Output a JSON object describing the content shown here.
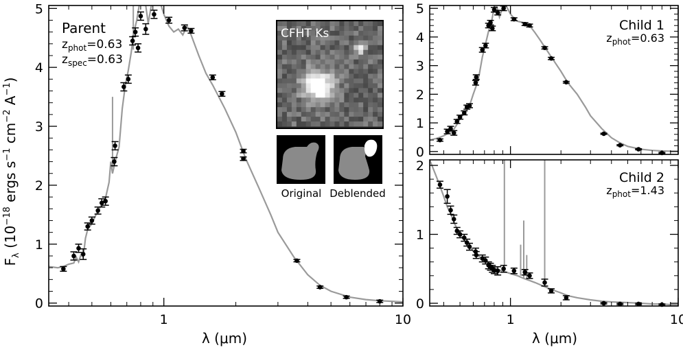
{
  "figure": {
    "y_label_main": "F",
    "y_label_sub": "λ",
    "y_label_rest": " (10",
    "y_label_exp1": "−18",
    "y_label_ergs": " ergs s",
    "y_label_exp2": "−1",
    "y_label_cm": " cm",
    "y_label_exp3": "−2",
    "y_label_A": " A",
    "y_label_exp4": "−1",
    "y_label_close": ")",
    "x_label": "λ (μm)",
    "inset": {
      "title": "CFHT Ks",
      "original_label": "Original",
      "deblended_label": "Deblended"
    }
  },
  "colors": {
    "model": "#9a9a9a",
    "points": "#000000",
    "axes": "#000000"
  },
  "chart_data": [
    {
      "id": "parent",
      "type": "scatter",
      "title": "Parent",
      "annotations": [
        {
          "label": "Parent"
        },
        {
          "label": "z",
          "sub": "phot",
          "value": "=0.63"
        },
        {
          "label": "z",
          "sub": "spec",
          "value": "=0.63"
        }
      ],
      "xscale": "log",
      "xlim": [
        0.33,
        10
      ],
      "ylim": [
        -0.05,
        5.05
      ],
      "xticks": [
        1,
        10
      ],
      "xticklabels": [
        "1",
        "10"
      ],
      "yticks": [
        0,
        1,
        2,
        3,
        4,
        5
      ],
      "yticklabels": [
        "0",
        "1",
        "2",
        "3",
        "4",
        "5"
      ],
      "points": [
        {
          "x": 0.38,
          "y": 0.58,
          "err": 0.04
        },
        {
          "x": 0.42,
          "y": 0.8,
          "err": 0.07
        },
        {
          "x": 0.44,
          "y": 0.93,
          "err": 0.07
        },
        {
          "x": 0.46,
          "y": 0.83,
          "err": 0.09
        },
        {
          "x": 0.48,
          "y": 1.3,
          "err": 0.06
        },
        {
          "x": 0.5,
          "y": 1.4,
          "err": 0.06
        },
        {
          "x": 0.53,
          "y": 1.57,
          "err": 0.06
        },
        {
          "x": 0.55,
          "y": 1.7,
          "err": 0.07
        },
        {
          "x": 0.57,
          "y": 1.73,
          "err": 0.07
        },
        {
          "x": 0.62,
          "y": 2.4,
          "err": 0.07
        },
        {
          "x": 0.625,
          "y": 2.67,
          "err": 0.07
        },
        {
          "x": 0.68,
          "y": 3.67,
          "err": 0.07
        },
        {
          "x": 0.71,
          "y": 3.8,
          "err": 0.07
        },
        {
          "x": 0.74,
          "y": 4.45,
          "err": 0.07
        },
        {
          "x": 0.76,
          "y": 4.6,
          "err": 0.07
        },
        {
          "x": 0.78,
          "y": 4.33,
          "err": 0.07
        },
        {
          "x": 0.8,
          "y": 4.87,
          "err": 0.07
        },
        {
          "x": 0.84,
          "y": 4.65,
          "err": 0.09
        },
        {
          "x": 0.91,
          "y": 4.9,
          "err": 0.07
        },
        {
          "x": 1.05,
          "y": 4.8,
          "err": 0.05
        },
        {
          "x": 1.22,
          "y": 4.67,
          "err": 0.05
        },
        {
          "x": 1.3,
          "y": 4.62,
          "err": 0.04
        },
        {
          "x": 1.6,
          "y": 3.83,
          "err": 0.04
        },
        {
          "x": 1.75,
          "y": 3.55,
          "err": 0.04
        },
        {
          "x": 2.15,
          "y": 2.58,
          "err": 0.03
        },
        {
          "x": 2.15,
          "y": 2.45,
          "err": 0.03
        },
        {
          "x": 3.6,
          "y": 0.72,
          "err": 0.02
        },
        {
          "x": 4.5,
          "y": 0.27,
          "err": 0.02
        },
        {
          "x": 5.8,
          "y": 0.1,
          "err": 0.02
        },
        {
          "x": 8.0,
          "y": 0.03,
          "err": 0.02
        }
      ],
      "model": {
        "x": [
          0.33,
          0.36,
          0.38,
          0.4,
          0.42,
          0.43,
          0.44,
          0.45,
          0.46,
          0.47,
          0.48,
          0.5,
          0.52,
          0.55,
          0.57,
          0.59,
          0.6,
          0.61,
          0.63,
          0.65,
          0.67,
          0.69,
          0.71,
          0.73,
          0.75,
          0.77,
          0.8,
          0.83,
          0.86,
          0.9,
          0.95,
          1.0,
          1.05,
          1.1,
          1.15,
          1.2,
          1.25,
          1.3,
          1.4,
          1.5,
          1.6,
          1.8,
          2.0,
          2.2,
          2.5,
          2.8,
          3.0,
          3.5,
          4.0,
          4.5,
          5.0,
          6.0,
          7.0,
          8.0,
          9.0,
          10.0
        ],
        "y": [
          0.62,
          0.6,
          0.62,
          0.66,
          0.68,
          0.78,
          0.7,
          0.82,
          0.78,
          1.1,
          1.25,
          1.35,
          1.5,
          1.68,
          1.78,
          2.05,
          2.4,
          2.2,
          2.45,
          2.65,
          3.3,
          3.7,
          3.95,
          4.25,
          4.6,
          4.8,
          5.2,
          5.2,
          4.75,
          5.2,
          5.2,
          4.9,
          4.7,
          4.6,
          4.65,
          4.55,
          4.7,
          4.55,
          4.2,
          3.9,
          3.7,
          3.3,
          2.9,
          2.45,
          1.95,
          1.5,
          1.2,
          0.78,
          0.48,
          0.3,
          0.2,
          0.1,
          0.06,
          0.04,
          0.03,
          0.02
        ]
      },
      "model_spikes": [
        {
          "x": 0.61,
          "y0": 2.3,
          "y1": 3.5
        },
        {
          "x": 0.745,
          "y0": 4.3,
          "y1": 5.05
        }
      ]
    },
    {
      "id": "child1",
      "type": "scatter",
      "title": "Child 1",
      "annotations": [
        {
          "label": "Child 1"
        },
        {
          "label": "z",
          "sub": "phot",
          "value": "=0.63"
        }
      ],
      "xscale": "log",
      "xlim": [
        0.33,
        10
      ],
      "ylim": [
        -0.1,
        5.1
      ],
      "xticks": [
        1,
        10
      ],
      "xticklabels": [
        "",
        ""
      ],
      "yticks": [
        0,
        1,
        2,
        3,
        4,
        5
      ],
      "yticklabels": [
        "0",
        "1",
        "2",
        "3",
        "4",
        "5"
      ],
      "points": [
        {
          "x": 0.38,
          "y": 0.4,
          "err": 0.04
        },
        {
          "x": 0.42,
          "y": 0.7,
          "err": 0.08
        },
        {
          "x": 0.44,
          "y": 0.8,
          "err": 0.08
        },
        {
          "x": 0.46,
          "y": 0.65,
          "err": 0.08
        },
        {
          "x": 0.48,
          "y": 1.05,
          "err": 0.07
        },
        {
          "x": 0.5,
          "y": 1.2,
          "err": 0.07
        },
        {
          "x": 0.53,
          "y": 1.35,
          "err": 0.07
        },
        {
          "x": 0.55,
          "y": 1.55,
          "err": 0.07
        },
        {
          "x": 0.57,
          "y": 1.6,
          "err": 0.07
        },
        {
          "x": 0.62,
          "y": 2.4,
          "err": 0.08
        },
        {
          "x": 0.625,
          "y": 2.6,
          "err": 0.08
        },
        {
          "x": 0.68,
          "y": 3.55,
          "err": 0.08
        },
        {
          "x": 0.71,
          "y": 3.7,
          "err": 0.08
        },
        {
          "x": 0.74,
          "y": 4.4,
          "err": 0.08
        },
        {
          "x": 0.76,
          "y": 4.5,
          "err": 0.08
        },
        {
          "x": 0.78,
          "y": 4.3,
          "err": 0.08
        },
        {
          "x": 0.8,
          "y": 4.95,
          "err": 0.08
        },
        {
          "x": 0.84,
          "y": 4.85,
          "err": 0.08
        },
        {
          "x": 0.91,
          "y": 5.0,
          "err": 0.08
        },
        {
          "x": 1.05,
          "y": 4.62,
          "err": 0.05
        },
        {
          "x": 1.22,
          "y": 4.45,
          "err": 0.05
        },
        {
          "x": 1.3,
          "y": 4.4,
          "err": 0.05
        },
        {
          "x": 1.6,
          "y": 3.62,
          "err": 0.04
        },
        {
          "x": 1.75,
          "y": 3.25,
          "err": 0.04
        },
        {
          "x": 2.15,
          "y": 2.42,
          "err": 0.03
        },
        {
          "x": 3.6,
          "y": 0.62,
          "err": 0.02
        },
        {
          "x": 4.5,
          "y": 0.22,
          "err": 0.02
        },
        {
          "x": 5.8,
          "y": 0.08,
          "err": 0.02
        },
        {
          "x": 8.0,
          "y": -0.05,
          "err": 0.02
        }
      ],
      "model": {
        "x": [
          0.33,
          0.36,
          0.38,
          0.4,
          0.42,
          0.44,
          0.46,
          0.48,
          0.5,
          0.52,
          0.55,
          0.57,
          0.6,
          0.63,
          0.65,
          0.68,
          0.71,
          0.74,
          0.77,
          0.8,
          0.83,
          0.86,
          0.9,
          0.95,
          1.0,
          1.05,
          1.1,
          1.2,
          1.3,
          1.4,
          1.5,
          1.6,
          1.8,
          2.0,
          2.2,
          2.5,
          2.8,
          3.0,
          3.5,
          4.0,
          4.5,
          5.0,
          6.0,
          7.0,
          8.0,
          9.0,
          10.0
        ],
        "y": [
          0.4,
          0.45,
          0.5,
          0.55,
          0.62,
          0.68,
          0.78,
          0.95,
          1.15,
          1.3,
          1.45,
          1.6,
          2.0,
          2.35,
          2.65,
          3.3,
          3.75,
          4.2,
          4.5,
          5.05,
          5.05,
          4.7,
          5.05,
          5.05,
          4.8,
          4.65,
          4.55,
          4.5,
          4.4,
          4.15,
          3.9,
          3.65,
          3.2,
          2.8,
          2.4,
          2.0,
          1.55,
          1.25,
          0.8,
          0.48,
          0.3,
          0.18,
          0.08,
          0.04,
          0.02,
          0.01,
          0.01
        ]
      },
      "model_spikes": []
    },
    {
      "id": "child2",
      "type": "scatter",
      "title": "Child 2",
      "annotations": [
        {
          "label": "Child 2"
        },
        {
          "label": "z",
          "sub": "phot",
          "value": "=1.43"
        }
      ],
      "xscale": "log",
      "xlim": [
        0.33,
        10
      ],
      "ylim": [
        -0.04,
        2.08
      ],
      "xticks": [
        1,
        10
      ],
      "xticklabels": [
        "1",
        "10"
      ],
      "yticks": [
        0,
        1,
        2
      ],
      "yticklabels": [
        "0",
        "1",
        "2"
      ],
      "points": [
        {
          "x": 0.38,
          "y": 1.72,
          "err": 0.05
        },
        {
          "x": 0.42,
          "y": 1.55,
          "err": 0.1
        },
        {
          "x": 0.44,
          "y": 1.35,
          "err": 0.06
        },
        {
          "x": 0.46,
          "y": 1.22,
          "err": 0.06
        },
        {
          "x": 0.48,
          "y": 1.05,
          "err": 0.05
        },
        {
          "x": 0.5,
          "y": 1.0,
          "err": 0.05
        },
        {
          "x": 0.53,
          "y": 0.95,
          "err": 0.05
        },
        {
          "x": 0.55,
          "y": 0.88,
          "err": 0.05
        },
        {
          "x": 0.57,
          "y": 0.82,
          "err": 0.05
        },
        {
          "x": 0.62,
          "y": 0.75,
          "err": 0.05
        },
        {
          "x": 0.625,
          "y": 0.7,
          "err": 0.05
        },
        {
          "x": 0.68,
          "y": 0.65,
          "err": 0.05
        },
        {
          "x": 0.71,
          "y": 0.62,
          "err": 0.05
        },
        {
          "x": 0.74,
          "y": 0.55,
          "err": 0.05
        },
        {
          "x": 0.76,
          "y": 0.53,
          "err": 0.05
        },
        {
          "x": 0.78,
          "y": 0.5,
          "err": 0.05
        },
        {
          "x": 0.8,
          "y": 0.48,
          "err": 0.05
        },
        {
          "x": 0.84,
          "y": 0.47,
          "err": 0.06
        },
        {
          "x": 0.91,
          "y": 0.5,
          "err": 0.05
        },
        {
          "x": 1.05,
          "y": 0.47,
          "err": 0.04
        },
        {
          "x": 1.22,
          "y": 0.45,
          "err": 0.04
        },
        {
          "x": 1.3,
          "y": 0.4,
          "err": 0.04
        },
        {
          "x": 1.6,
          "y": 0.3,
          "err": 0.05
        },
        {
          "x": 1.75,
          "y": 0.18,
          "err": 0.03
        },
        {
          "x": 2.15,
          "y": 0.08,
          "err": 0.03
        },
        {
          "x": 3.6,
          "y": 0.0,
          "err": 0.01
        },
        {
          "x": 4.5,
          "y": -0.01,
          "err": 0.01
        },
        {
          "x": 5.8,
          "y": -0.01,
          "err": 0.01
        },
        {
          "x": 8.0,
          "y": -0.02,
          "err": 0.01
        }
      ],
      "model": {
        "x": [
          0.33,
          0.34,
          0.36,
          0.38,
          0.4,
          0.42,
          0.44,
          0.46,
          0.48,
          0.5,
          0.53,
          0.56,
          0.6,
          0.65,
          0.7,
          0.75,
          0.8,
          0.85,
          0.9,
          0.95,
          1.0,
          1.1,
          1.2,
          1.3,
          1.4,
          1.5,
          1.6,
          1.8,
          2.0,
          2.2,
          2.5,
          3.0,
          3.5,
          4.0,
          5.0,
          6.0,
          7.0,
          8.0,
          9.0,
          10.0
        ],
        "y": [
          2.08,
          2.0,
          1.85,
          1.7,
          1.55,
          1.4,
          1.3,
          1.18,
          1.08,
          1.0,
          0.92,
          0.85,
          0.76,
          0.68,
          0.62,
          0.57,
          0.52,
          0.49,
          0.46,
          0.45,
          0.43,
          0.4,
          0.36,
          0.33,
          0.3,
          0.27,
          0.24,
          0.19,
          0.15,
          0.11,
          0.08,
          0.05,
          0.03,
          0.02,
          0.01,
          0.0,
          -0.01,
          -0.01,
          -0.02,
          -0.02
        ]
      },
      "model_spikes": [
        {
          "x": 0.92,
          "y0": 0.45,
          "y1": 2.08
        },
        {
          "x": 1.15,
          "y0": 0.4,
          "y1": 0.85
        },
        {
          "x": 1.2,
          "y0": 0.36,
          "y1": 1.2
        },
        {
          "x": 1.25,
          "y0": 0.34,
          "y1": 0.7
        },
        {
          "x": 1.6,
          "y0": 0.24,
          "y1": 2.08
        }
      ]
    }
  ]
}
